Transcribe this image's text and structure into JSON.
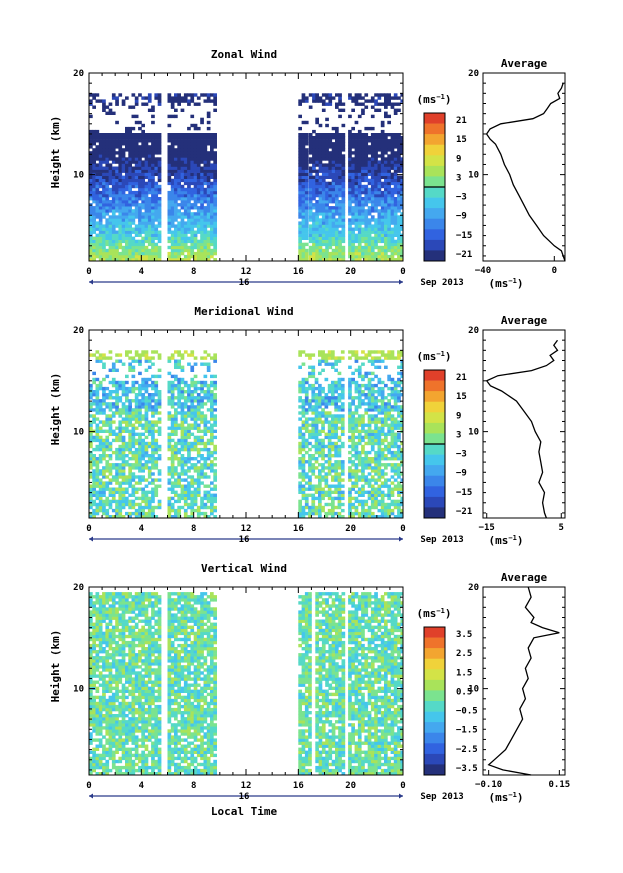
{
  "chart_data": [
    {
      "type": "heatmap",
      "title": "Zonal Wind",
      "ylabel": "Height (km)",
      "xlabel": "",
      "x_ticks": [
        "0",
        "4",
        "8",
        "12",
        "16",
        "20",
        "0"
      ],
      "y_ticks": [
        "20",
        "10"
      ],
      "xlim": [
        0,
        24
      ],
      "ylim": [
        1.5,
        20
      ],
      "date_label": "16",
      "month_label": "Sep 2013",
      "colorbar": {
        "unit": "(ms",
        "unit_sup": "−1",
        "unit_close": ")",
        "ticks": [
          "21",
          "15",
          "9",
          "3",
          "−3",
          "−9",
          "−15",
          "−21"
        ],
        "range": [
          -24,
          24
        ]
      },
      "avg_panel": {
        "title": "Average",
        "x_ticks": [
          "−40",
          "0"
        ],
        "y_ticks": [
          "20",
          "10"
        ],
        "xlim": [
          -40,
          6
        ],
        "unit": "(ms",
        "unit_sup": "−1",
        "unit_close": ")"
      },
      "avg_profile": {
        "height_km": [
          1.5,
          2,
          2.5,
          3,
          3.5,
          4,
          5,
          6,
          7,
          8,
          9,
          10,
          11,
          12,
          13,
          13.5,
          14,
          14.5,
          15,
          15.5,
          16,
          16.5,
          17,
          17.5,
          18,
          18.5,
          19
        ],
        "value": [
          6,
          5,
          4,
          0,
          -3,
          -6,
          -10,
          -14,
          -17,
          -20,
          -23,
          -25,
          -28,
          -30,
          -33,
          -36,
          -38,
          -36,
          -30,
          -12,
          -6,
          -4,
          -2,
          3,
          2,
          4,
          5
        ]
      },
      "data_columns_local_time": [
        [
          0,
          5.5
        ],
        [
          6,
          9.6
        ],
        [
          16,
          16.6
        ],
        [
          16.8,
          19.5
        ],
        [
          19.8,
          24
        ]
      ]
    },
    {
      "type": "heatmap",
      "title": "Meridional Wind",
      "ylabel": "Height (km)",
      "xlabel": "",
      "x_ticks": [
        "0",
        "4",
        "8",
        "12",
        "16",
        "20",
        "0"
      ],
      "y_ticks": [
        "20",
        "10"
      ],
      "xlim": [
        0,
        24
      ],
      "ylim": [
        1.5,
        20
      ],
      "date_label": "16",
      "month_label": "Sep 2013",
      "colorbar": {
        "unit": "(ms",
        "unit_sup": "−1",
        "unit_close": ")",
        "ticks": [
          "21",
          "15",
          "9",
          "3",
          "−3",
          "−9",
          "−15",
          "−21"
        ],
        "range": [
          -24,
          24
        ]
      },
      "avg_panel": {
        "title": "Average",
        "x_ticks": [
          "−15",
          "5"
        ],
        "y_ticks": [
          "20",
          "10"
        ],
        "xlim": [
          -16,
          6
        ],
        "unit": "(ms",
        "unit_sup": "−1",
        "unit_close": ")"
      },
      "avg_profile": {
        "height_km": [
          1.5,
          2,
          3,
          4,
          5,
          6,
          7,
          8,
          9,
          10,
          11,
          12,
          13,
          14,
          14.5,
          15,
          15.5,
          16,
          16.5,
          17,
          17.5,
          18,
          18.5,
          19
        ],
        "value": [
          1,
          0.5,
          0,
          0.5,
          -1,
          0,
          -0.5,
          -1,
          -0.5,
          -2,
          -3,
          -5,
          -7,
          -11,
          -14,
          -15,
          -12,
          -3,
          1,
          3,
          2,
          4,
          3,
          4
        ]
      },
      "data_columns_local_time": [
        [
          0,
          5.5
        ],
        [
          6,
          9.6
        ],
        [
          16,
          19.5
        ],
        [
          19.8,
          24
        ]
      ]
    },
    {
      "type": "heatmap",
      "title": "Vertical Wind",
      "ylabel": "Height (km)",
      "xlabel": "Local Time",
      "x_ticks": [
        "0",
        "4",
        "8",
        "12",
        "16",
        "20",
        "0"
      ],
      "y_ticks": [
        "20",
        "10"
      ],
      "xlim": [
        0,
        24
      ],
      "ylim": [
        1.5,
        20
      ],
      "date_label": "16",
      "month_label": "Sep 2013",
      "colorbar": {
        "unit": "(ms",
        "unit_sup": "−1",
        "unit_close": ")",
        "ticks": [
          "3.5",
          "2.5",
          "1.5",
          "0.5",
          "−0.5",
          "−1.5",
          "−2.5",
          "−3.5"
        ],
        "range": [
          -4,
          4
        ]
      },
      "avg_panel": {
        "title": "Average",
        "x_ticks": [
          "−0.10",
          "0.15"
        ],
        "y_ticks": [
          "20",
          "10"
        ],
        "xlim": [
          -0.12,
          0.17
        ],
        "unit": "(ms",
        "unit_sup": "−1",
        "unit_close": ")"
      },
      "avg_profile": {
        "height_km": [
          1.5,
          2,
          2.5,
          3,
          4,
          5,
          6,
          7,
          8,
          9,
          10,
          11,
          12,
          13,
          14,
          15,
          15.5,
          16,
          16.5,
          17,
          18,
          19,
          20
        ],
        "value": [
          0.05,
          -0.05,
          -0.1,
          -0.08,
          -0.04,
          -0.02,
          0,
          0.02,
          0.01,
          0.03,
          0.02,
          0.04,
          0.03,
          0.05,
          0.04,
          0.06,
          0.15,
          0.09,
          0.05,
          0.06,
          0.03,
          0.05,
          0.04
        ]
      },
      "data_columns_local_time": [
        [
          0,
          5.5
        ],
        [
          6,
          9.6
        ],
        [
          16,
          17
        ],
        [
          17.3,
          19.5
        ],
        [
          19.8,
          24
        ]
      ]
    }
  ]
}
